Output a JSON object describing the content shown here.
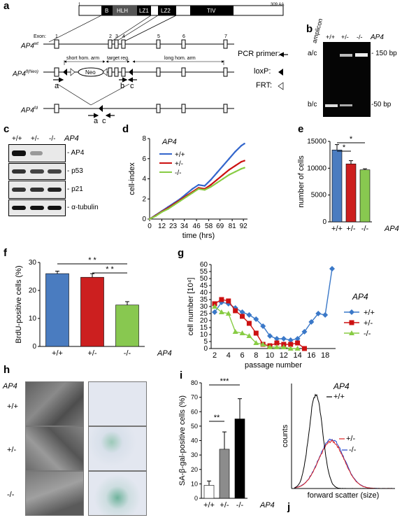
{
  "panels": {
    "a": {
      "letter": "a",
      "protein_length": "309 AA",
      "protein_start": "1",
      "domains": [
        "B",
        "HLH",
        "LZ1",
        "LZ2",
        "TIV"
      ],
      "exon_label": "Exon:",
      "exons": [
        "1",
        "2",
        "3",
        "4",
        "5",
        "6",
        "7"
      ],
      "allele_wt": "AP4",
      "allele_wt_sup": "wt",
      "allele_flox": "AP4",
      "allele_flox_sup": "fl(Neo)",
      "allele_ko": "AP4",
      "allele_ko_sup": "fd",
      "short_arm": "short hom. arm",
      "target_region": "target reg.",
      "long_arm": "long hom. arm",
      "neo": "Neo",
      "primer_a": "a",
      "primer_b": "b",
      "primer_c": "c",
      "legend_pcr": "PCR primer:",
      "legend_loxp": "loxP:",
      "legend_frt": "FRT:"
    },
    "b": {
      "letter": "b",
      "amplicon": "amplicon",
      "lanes": [
        "+/+",
        "+/-",
        "-/-"
      ],
      "gene": "AP4",
      "band_upper": "a/c",
      "band_lower": "b/c",
      "size_upper": "- 150 bp",
      "size_lower": "-50 bp"
    },
    "c": {
      "letter": "c",
      "lanes": [
        "+/+",
        "+/-",
        "-/-"
      ],
      "gene": "AP4",
      "blots": [
        "- AP4",
        "- p53",
        "- p21",
        "- α-tubulin"
      ]
    },
    "h": {
      "letter": "h",
      "gene": "AP4",
      "rows": [
        "+/+",
        "+/-",
        "-/-"
      ]
    }
  },
  "chart_data": [
    {
      "panel": "d",
      "type": "line",
      "gene_label": "AP4",
      "xlabel": "time (hrs)",
      "ylabel": "cell-index",
      "x_ticks": [
        0,
        12,
        23,
        34,
        46,
        58,
        69,
        81,
        92
      ],
      "y_ticks": [
        0,
        2,
        4,
        6,
        8
      ],
      "xlim": [
        0,
        96
      ],
      "ylim": [
        0,
        8
      ],
      "x": [
        0,
        6,
        12,
        18,
        24,
        30,
        36,
        42,
        48,
        54,
        60,
        66,
        72,
        78,
        84,
        90,
        93
      ],
      "series": [
        {
          "name": "+/+",
          "color": "#3366cc",
          "values": [
            0.0,
            0.4,
            0.8,
            1.2,
            1.6,
            2.0,
            2.5,
            3.0,
            3.4,
            3.3,
            3.9,
            4.6,
            5.3,
            6.0,
            6.7,
            7.3,
            7.5
          ]
        },
        {
          "name": "+/-",
          "color": "#cc1111",
          "values": [
            0.0,
            0.35,
            0.75,
            1.1,
            1.5,
            1.9,
            2.3,
            2.7,
            3.1,
            3.0,
            3.4,
            3.9,
            4.4,
            4.9,
            5.3,
            5.7,
            5.8
          ]
        },
        {
          "name": "-/-",
          "color": "#88cc44",
          "values": [
            0.0,
            0.3,
            0.7,
            1.0,
            1.4,
            1.8,
            2.2,
            2.6,
            3.0,
            2.9,
            3.2,
            3.6,
            4.0,
            4.4,
            4.7,
            5.0,
            5.1
          ]
        }
      ]
    },
    {
      "panel": "e",
      "type": "bar",
      "gene_label": "AP4",
      "categories": [
        "+/+",
        "+/-",
        "-/-"
      ],
      "values": [
        13400,
        10800,
        9700
      ],
      "errors": [
        1000,
        600,
        200
      ],
      "colors": [
        "#4a7cc0",
        "#cc1f1f",
        "#88c850"
      ],
      "ylabel": "number of cells",
      "y_ticks": [
        0,
        5000,
        10000,
        15000
      ],
      "ylim": [
        0,
        15000
      ],
      "significance": [
        "*",
        "*"
      ]
    },
    {
      "panel": "f",
      "type": "bar",
      "gene_label": "AP4",
      "categories": [
        "+/+",
        "+/-",
        "-/-"
      ],
      "values": [
        26.0,
        24.7,
        14.8
      ],
      "errors": [
        0.9,
        1.3,
        1.2
      ],
      "colors": [
        "#4a7cc0",
        "#cc1f1f",
        "#88c850"
      ],
      "ylabel": "BrdU-positive cells (%)",
      "y_ticks": [
        0,
        10,
        20,
        30
      ],
      "ylim": [
        0,
        30
      ],
      "significance": [
        "* *",
        "* *"
      ]
    },
    {
      "panel": "g",
      "type": "line",
      "gene_label": "AP4",
      "xlabel": "passage number",
      "ylabel": "cell number [10⁴]",
      "x_ticks": [
        2,
        4,
        6,
        8,
        10,
        12,
        14,
        16,
        18
      ],
      "y_ticks": [
        0,
        5,
        10,
        15,
        20,
        25,
        30,
        35,
        40,
        45,
        50,
        55,
        60
      ],
      "ylim": [
        0,
        60
      ],
      "series": [
        {
          "name": "+/+",
          "color": "#3a78c8",
          "marker": "diamond",
          "x": [
            2,
            3,
            4,
            5,
            6,
            7,
            8,
            9,
            10,
            11,
            12,
            13,
            14,
            15,
            16,
            17,
            18,
            19
          ],
          "values": [
            26,
            33,
            32,
            29,
            26,
            24,
            21,
            16,
            9,
            7,
            7,
            6,
            7,
            12,
            19,
            25,
            24,
            57
          ]
        },
        {
          "name": "+/-",
          "color": "#cc1111",
          "marker": "square",
          "x": [
            2,
            3,
            4,
            5,
            6,
            7,
            8,
            9,
            10,
            11,
            12,
            13,
            14,
            15
          ],
          "values": [
            32,
            35,
            34,
            27,
            23,
            18,
            11,
            3,
            2,
            4,
            3,
            3,
            4,
            0
          ]
        },
        {
          "name": "-/-",
          "color": "#88cc44",
          "marker": "triangle",
          "x": [
            2,
            3,
            4,
            5,
            6,
            7,
            8,
            9,
            10,
            11,
            12,
            13,
            14
          ],
          "values": [
            30,
            26,
            25,
            12,
            11,
            9,
            4,
            3,
            1,
            1,
            1,
            0,
            0
          ]
        }
      ]
    },
    {
      "panel": "i",
      "type": "bar",
      "gene_label": "AP4",
      "categories": [
        "+/+",
        "+/-",
        "-/-"
      ],
      "values": [
        9,
        34,
        55
      ],
      "errors": [
        3,
        12,
        14
      ],
      "colors": [
        "#ffffff",
        "#8c8c8c",
        "#000000"
      ],
      "ylabel": "SA-β-gal-positive cells (%)",
      "y_ticks": [
        0,
        10,
        20,
        30,
        40,
        50,
        60,
        70,
        80
      ],
      "ylim": [
        0,
        80
      ],
      "significance": [
        "**",
        "***"
      ]
    },
    {
      "panel": "j",
      "type": "area",
      "gene_label": "AP4",
      "xlabel": "forward scatter (size)",
      "ylabel": "counts",
      "series": [
        {
          "name": "+/+",
          "color": "#000000",
          "peak_position": 0.22,
          "peak_height": 0.9
        },
        {
          "name": "+/-",
          "color": "#dd2222",
          "peak_position": 0.38,
          "peak_height": 0.45
        },
        {
          "name": "-/-",
          "color": "#2244cc",
          "peak_position": 0.38,
          "peak_height": 0.47
        }
      ]
    }
  ]
}
